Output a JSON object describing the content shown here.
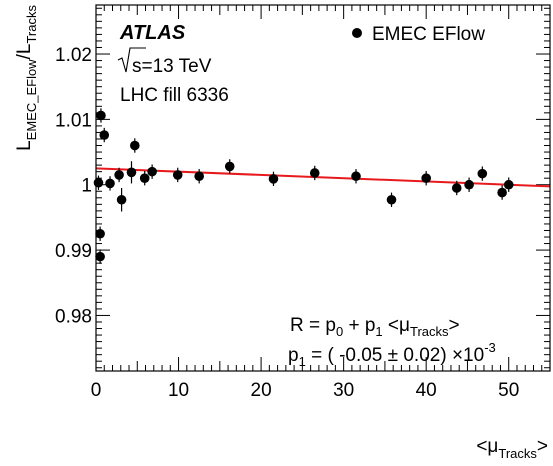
{
  "experiment": "ATLAS",
  "energy_label": "s=13 TeV",
  "fill_label": "LHC fill 6336",
  "legend_label": "EMEC EFlow",
  "fit_formula": {
    "lhs": "R = p",
    "p0_sub": "0",
    "mid": " + p",
    "p1_sub": "1",
    "mu_open": " <μ",
    "mu_sub": "Tracks",
    "mu_close": ">"
  },
  "fit_result": {
    "p": "p",
    "p_sub": "1",
    "value": " = ( -0.05 ± 0.02) ×10",
    "exp": "-3"
  },
  "y_axis": {
    "L": "L",
    "num_sub": "EMEC_EFlow",
    "slash": "/L",
    "den_sub": "Tracks"
  },
  "x_axis": {
    "open": "<μ",
    "sub": "Tracks",
    "close": ">"
  },
  "colors": {
    "points": "#000000",
    "fit_line": "#e8191c"
  },
  "chart_data": {
    "type": "scatter",
    "xlim": [
      0,
      55
    ],
    "ylim": [
      0.9715,
      1.0275
    ],
    "x_ticks": [
      0,
      10,
      20,
      30,
      40,
      50
    ],
    "y_ticks": [
      0.98,
      0.99,
      1,
      1.01,
      1.02
    ],
    "y_tick_labels": [
      "0.98",
      "0.99",
      "1",
      "1.01",
      "1.02"
    ],
    "grid": false,
    "legend_position": "top-right",
    "points": [
      {
        "x": 0.3,
        "y": 1.0003,
        "err": 0.0011
      },
      {
        "x": 0.5,
        "y": 0.9925,
        "err": 0.0011
      },
      {
        "x": 0.5,
        "y": 0.989,
        "err": 0.0011
      },
      {
        "x": 0.6,
        "y": 1.0106,
        "err": 0.0011
      },
      {
        "x": 1.0,
        "y": 1.0076,
        "err": 0.0011
      },
      {
        "x": 1.7,
        "y": 1.0002,
        "err": 0.0011
      },
      {
        "x": 2.8,
        "y": 1.0015,
        "err": 0.0011
      },
      {
        "x": 3.1,
        "y": 0.9977,
        "err": 0.0018
      },
      {
        "x": 4.3,
        "y": 1.0019,
        "err": 0.0017
      },
      {
        "x": 4.7,
        "y": 1.006,
        "err": 0.0011
      },
      {
        "x": 5.9,
        "y": 1.001,
        "err": 0.0011
      },
      {
        "x": 6.8,
        "y": 1.002,
        "err": 0.0011
      },
      {
        "x": 9.9,
        "y": 1.0015,
        "err": 0.0011
      },
      {
        "x": 12.5,
        "y": 1.0013,
        "err": 0.0011
      },
      {
        "x": 16.2,
        "y": 1.0028,
        "err": 0.0011
      },
      {
        "x": 21.5,
        "y": 1.0009,
        "err": 0.0011
      },
      {
        "x": 26.5,
        "y": 1.0018,
        "err": 0.0011
      },
      {
        "x": 31.5,
        "y": 1.0013,
        "err": 0.0011
      },
      {
        "x": 35.8,
        "y": 0.9977,
        "err": 0.0011
      },
      {
        "x": 40.0,
        "y": 1.001,
        "err": 0.0011
      },
      {
        "x": 43.7,
        "y": 0.9995,
        "err": 0.0011
      },
      {
        "x": 45.2,
        "y": 1.0,
        "err": 0.0011
      },
      {
        "x": 46.8,
        "y": 1.0017,
        "err": 0.0011
      },
      {
        "x": 49.2,
        "y": 0.9988,
        "err": 0.0011
      },
      {
        "x": 50.0,
        "y": 1.0,
        "err": 0.0011
      }
    ],
    "fit": {
      "p0": 1.0025,
      "p1": -5e-05,
      "x_range": [
        0,
        55
      ]
    }
  }
}
